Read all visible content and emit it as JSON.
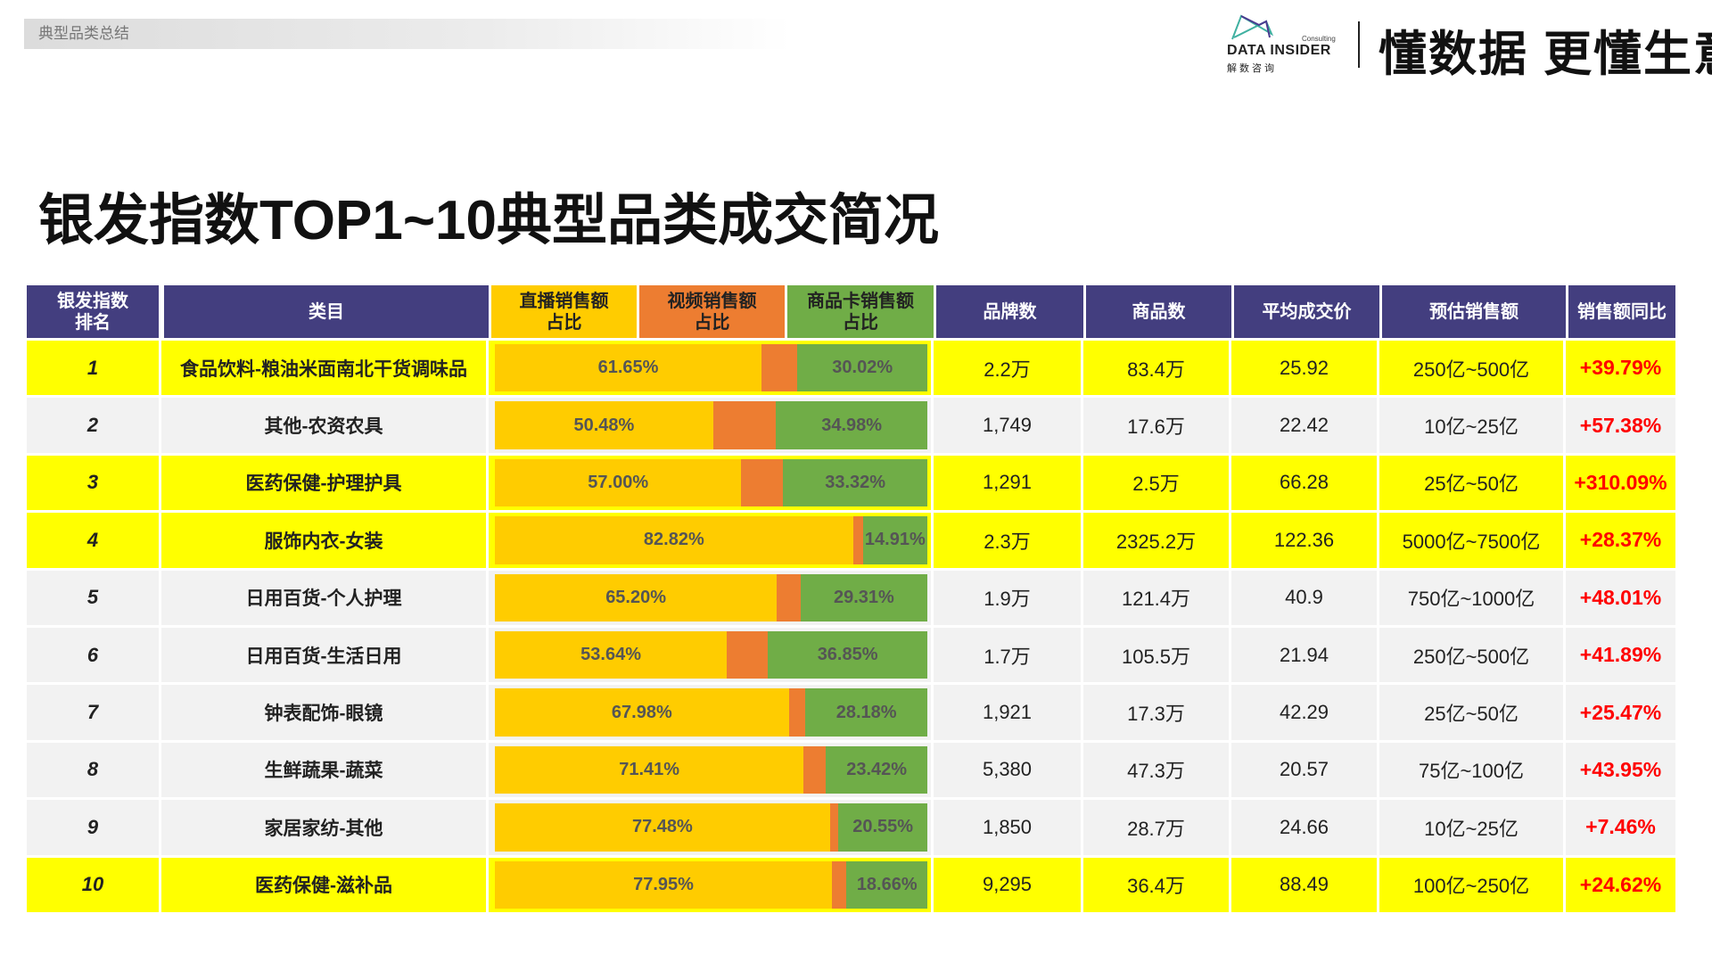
{
  "header": {
    "section_label": "典型品类总结",
    "logo": {
      "name": "DATA INSIDER",
      "cn": "解数咨询",
      "sub": "Consulting"
    },
    "slogan": "懂数据 更懂生意"
  },
  "title": "银发指数TOP1~10典型品类成交简况",
  "colors": {
    "header_bg": "#433E7F",
    "highlight_row": "#FFFF00",
    "normal_row": "#F2F2F2",
    "live": "#FFCC00",
    "video": "#ED7D31",
    "card": "#70AD47",
    "growth": "#FF0000"
  },
  "table": {
    "columns": [
      "银发指数\n排名",
      "类目",
      "直播销售额\n占比",
      "视频销售额\n占比",
      "商品卡销售额\n占比",
      "品牌数",
      "商品数",
      "平均成交价",
      "预估销售额",
      "销售额同比"
    ],
    "rows": [
      {
        "rank": "1",
        "category": "食品饮料-粮油米面南北干货调味品",
        "live": 61.65,
        "card": 30.02,
        "live_label": "61.65%",
        "card_label": "30.02%",
        "brands": "2.2万",
        "products": "83.4万",
        "avg_price": "25.92",
        "sales": "250亿~500亿",
        "growth": "+39.79%",
        "highlight": true
      },
      {
        "rank": "2",
        "category": "其他-农资农具",
        "live": 50.48,
        "card": 34.98,
        "live_label": "50.48%",
        "card_label": "34.98%",
        "brands": "1,749",
        "products": "17.6万",
        "avg_price": "22.42",
        "sales": "10亿~25亿",
        "growth": "+57.38%",
        "highlight": false
      },
      {
        "rank": "3",
        "category": "医药保健-护理护具",
        "live": 57.0,
        "card": 33.32,
        "live_label": "57.00%",
        "card_label": "33.32%",
        "brands": "1,291",
        "products": "2.5万",
        "avg_price": "66.28",
        "sales": "25亿~50亿",
        "growth": "+310.09%",
        "highlight": true
      },
      {
        "rank": "4",
        "category": "服饰内衣-女装",
        "live": 82.82,
        "card": 14.91,
        "live_label": "82.82%",
        "card_label": "14.91%",
        "brands": "2.3万",
        "products": "2325.2万",
        "avg_price": "122.36",
        "sales": "5000亿~7500亿",
        "growth": "+28.37%",
        "highlight": true
      },
      {
        "rank": "5",
        "category": "日用百货-个人护理",
        "live": 65.2,
        "card": 29.31,
        "live_label": "65.20%",
        "card_label": "29.31%",
        "brands": "1.9万",
        "products": "121.4万",
        "avg_price": "40.9",
        "sales": "750亿~1000亿",
        "growth": "+48.01%",
        "highlight": false
      },
      {
        "rank": "6",
        "category": "日用百货-生活日用",
        "live": 53.64,
        "card": 36.85,
        "live_label": "53.64%",
        "card_label": "36.85%",
        "brands": "1.7万",
        "products": "105.5万",
        "avg_price": "21.94",
        "sales": "250亿~500亿",
        "growth": "+41.89%",
        "highlight": false
      },
      {
        "rank": "7",
        "category": "钟表配饰-眼镜",
        "live": 67.98,
        "card": 28.18,
        "live_label": "67.98%",
        "card_label": "28.18%",
        "brands": "1,921",
        "products": "17.3万",
        "avg_price": "42.29",
        "sales": "25亿~50亿",
        "growth": "+25.47%",
        "highlight": false
      },
      {
        "rank": "8",
        "category": "生鲜蔬果-蔬菜",
        "live": 71.41,
        "card": 23.42,
        "live_label": "71.41%",
        "card_label": "23.42%",
        "brands": "5,380",
        "products": "47.3万",
        "avg_price": "20.57",
        "sales": "75亿~100亿",
        "growth": "+43.95%",
        "highlight": false
      },
      {
        "rank": "9",
        "category": "家居家纺-其他",
        "live": 77.48,
        "card": 20.55,
        "live_label": "77.48%",
        "card_label": "20.55%",
        "brands": "1,850",
        "products": "28.7万",
        "avg_price": "24.66",
        "sales": "10亿~25亿",
        "growth": "+7.46%",
        "highlight": false
      },
      {
        "rank": "10",
        "category": "医药保健-滋补品",
        "live": 77.95,
        "card": 18.66,
        "live_label": "77.95%",
        "card_label": "18.66%",
        "brands": "9,295",
        "products": "36.4万",
        "avg_price": "88.49",
        "sales": "100亿~250亿",
        "growth": "+24.62%",
        "highlight": true
      }
    ]
  }
}
